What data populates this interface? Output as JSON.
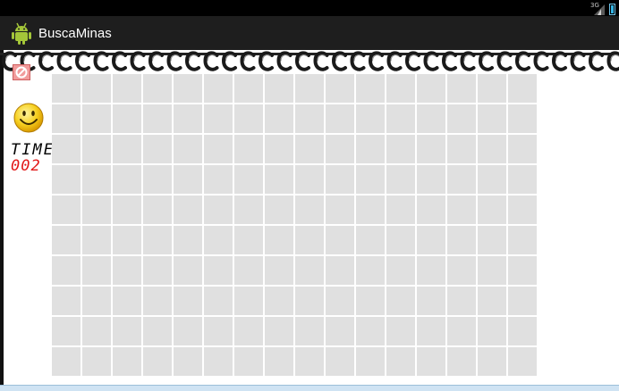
{
  "status_bar": {
    "network_label": "3G"
  },
  "app": {
    "title": "BuscaMinas"
  },
  "controls": {
    "time_label": "TIME",
    "time_value": "002"
  },
  "board": {
    "rows": 10,
    "cols": 16
  },
  "colors": {
    "cell": "#e0e0e0",
    "time_digits": "#e21818",
    "action_bar": "#1e1e1e"
  },
  "icons": [
    "android-app-icon",
    "signal-icon",
    "battery-icon",
    "flag-toggle-icon",
    "smiley-face-icon",
    "spiral-binding"
  ]
}
